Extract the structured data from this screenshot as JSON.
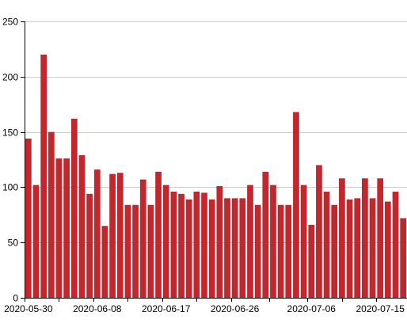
{
  "chart_data": {
    "type": "bar",
    "title": "",
    "xlabel": "",
    "ylabel": "",
    "ylim": [
      0,
      250
    ],
    "y_ticks": [
      0,
      50,
      100,
      150,
      200,
      250
    ],
    "grid": "horizontal",
    "bar_color": "#c1272d",
    "x_tick_labels": [
      "2020-05-30",
      "2020-06-08",
      "2020-06-17",
      "2020-06-26",
      "2020-07-06",
      "2020-07-15"
    ],
    "categories": [
      "2020-05-30",
      "2020-05-31",
      "2020-06-01",
      "2020-06-02",
      "2020-06-03",
      "2020-06-04",
      "2020-06-05",
      "2020-06-06",
      "2020-06-07",
      "2020-06-08",
      "2020-06-09",
      "2020-06-10",
      "2020-06-11",
      "2020-06-12",
      "2020-06-13",
      "2020-06-14",
      "2020-06-15",
      "2020-06-16",
      "2020-06-17",
      "2020-06-18",
      "2020-06-19",
      "2020-06-20",
      "2020-06-21",
      "2020-06-22",
      "2020-06-23",
      "2020-06-24",
      "2020-06-25",
      "2020-06-26",
      "2020-06-27",
      "2020-06-28",
      "2020-06-29",
      "2020-06-30",
      "2020-07-01",
      "2020-07-02",
      "2020-07-03",
      "2020-07-04",
      "2020-07-05",
      "2020-07-06",
      "2020-07-07",
      "2020-07-08",
      "2020-07-09",
      "2020-07-10",
      "2020-07-11",
      "2020-07-12",
      "2020-07-13",
      "2020-07-14",
      "2020-07-15",
      "2020-07-16",
      "2020-07-17",
      "2020-07-18"
    ],
    "values": [
      144,
      102,
      220,
      150,
      126,
      126,
      162,
      129,
      94,
      116,
      65,
      112,
      113,
      84,
      84,
      107,
      84,
      114,
      102,
      96,
      94,
      89,
      96,
      95,
      89,
      101,
      90,
      90,
      90,
      102,
      84,
      114,
      102,
      84,
      84,
      168,
      102,
      66,
      120,
      96,
      84,
      108,
      89,
      90,
      108,
      90,
      108,
      87,
      96,
      72
    ]
  }
}
